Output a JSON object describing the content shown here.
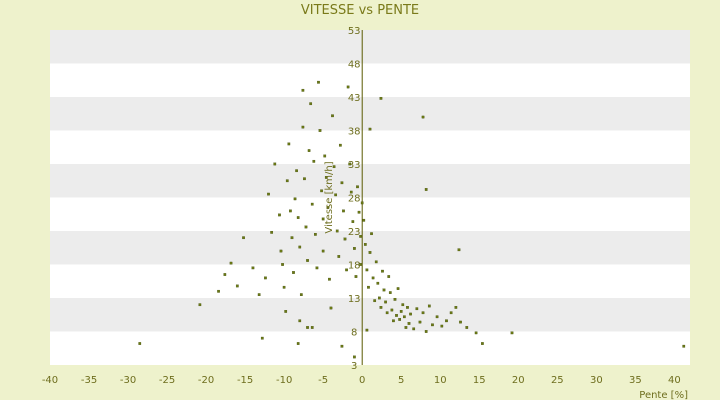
{
  "chart_data": {
    "type": "scatter",
    "title": "VITESSE vs PENTE",
    "xlabel": "Pente [%]",
    "ylabel": "Vitesse [km/h]",
    "xlim": [
      -40,
      42
    ],
    "ylim": [
      3,
      53
    ],
    "x_ticks": [
      -40,
      -35,
      -30,
      -25,
      -20,
      -15,
      -10,
      -5,
      0,
      5,
      10,
      15,
      20,
      25,
      30,
      35,
      40
    ],
    "y_ticks": [
      3,
      8,
      13,
      18,
      23,
      28,
      33,
      38,
      43,
      48,
      53
    ],
    "grid": "alternating horizontal bands",
    "colors": {
      "points": "#6b7a14",
      "background": "#eef2cc",
      "band": "#ececec",
      "text": "#6e6e1e"
    },
    "series": [
      {
        "points": [
          [
            -28.5,
            6.2
          ],
          [
            -20.8,
            12.0
          ],
          [
            -18.4,
            14.0
          ],
          [
            -17.6,
            16.5
          ],
          [
            -16.8,
            18.2
          ],
          [
            -16.0,
            14.8
          ],
          [
            -15.2,
            22.0
          ],
          [
            -14.0,
            17.5
          ],
          [
            -13.2,
            13.5
          ],
          [
            -12.8,
            7.0
          ],
          [
            -12.4,
            16.0
          ],
          [
            -12.0,
            28.5
          ],
          [
            -11.6,
            22.8
          ],
          [
            -11.2,
            33.0
          ],
          [
            -10.6,
            25.4
          ],
          [
            -10.4,
            20.0
          ],
          [
            -10.2,
            18.0
          ],
          [
            -10.0,
            14.6
          ],
          [
            -9.8,
            11.0
          ],
          [
            -9.6,
            30.5
          ],
          [
            -9.4,
            36.0
          ],
          [
            -9.2,
            26.0
          ],
          [
            -9.0,
            22.0
          ],
          [
            -8.8,
            16.8
          ],
          [
            -8.6,
            27.8
          ],
          [
            -8.4,
            32.0
          ],
          [
            -8.2,
            25.0
          ],
          [
            -8.0,
            20.6
          ],
          [
            -7.8,
            13.5
          ],
          [
            -7.6,
            44.0
          ],
          [
            -7.6,
            38.5
          ],
          [
            -7.4,
            30.8
          ],
          [
            -7.2,
            23.6
          ],
          [
            -7.0,
            18.6
          ],
          [
            -7.0,
            8.6
          ],
          [
            -6.8,
            35.0
          ],
          [
            -6.6,
            42.0
          ],
          [
            -6.4,
            27.0
          ],
          [
            -6.2,
            33.4
          ],
          [
            -6.0,
            22.5
          ],
          [
            -5.8,
            17.5
          ],
          [
            -5.6,
            45.2
          ],
          [
            -5.4,
            38.0
          ],
          [
            -5.2,
            29.0
          ],
          [
            -5.0,
            24.8
          ],
          [
            -5.0,
            20.0
          ],
          [
            -4.8,
            34.2
          ],
          [
            -4.6,
            31.0
          ],
          [
            -4.4,
            26.5
          ],
          [
            -4.2,
            15.8
          ],
          [
            -4.0,
            11.5
          ],
          [
            -3.8,
            40.2
          ],
          [
            -3.6,
            32.6
          ],
          [
            -3.4,
            28.4
          ],
          [
            -3.2,
            23.0
          ],
          [
            -3.0,
            19.2
          ],
          [
            -2.8,
            35.8
          ],
          [
            -2.6,
            30.2
          ],
          [
            -2.4,
            26.0
          ],
          [
            -2.2,
            21.8
          ],
          [
            -2.0,
            17.2
          ],
          [
            -1.8,
            44.5
          ],
          [
            -1.6,
            33.0
          ],
          [
            -1.4,
            28.8
          ],
          [
            -1.2,
            24.4
          ],
          [
            -1.0,
            20.4
          ],
          [
            -0.8,
            16.2
          ],
          [
            -0.6,
            29.6
          ],
          [
            -0.4,
            25.8
          ],
          [
            -0.2,
            22.2
          ],
          [
            -0.2,
            18.0
          ],
          [
            0.0,
            27.2
          ],
          [
            0.2,
            24.6
          ],
          [
            0.4,
            21.0
          ],
          [
            0.6,
            17.2
          ],
          [
            0.8,
            14.6
          ],
          [
            1.0,
            19.8
          ],
          [
            1.2,
            22.6
          ],
          [
            1.4,
            16.0
          ],
          [
            1.6,
            12.6
          ],
          [
            1.8,
            18.4
          ],
          [
            2.0,
            15.2
          ],
          [
            2.2,
            13.0
          ],
          [
            2.4,
            11.6
          ],
          [
            2.6,
            17.0
          ],
          [
            2.8,
            14.2
          ],
          [
            3.0,
            12.4
          ],
          [
            3.2,
            10.8
          ],
          [
            3.4,
            16.2
          ],
          [
            3.6,
            13.8
          ],
          [
            3.8,
            11.2
          ],
          [
            4.0,
            9.6
          ],
          [
            4.2,
            12.8
          ],
          [
            4.4,
            10.4
          ],
          [
            4.6,
            14.4
          ],
          [
            4.8,
            9.8
          ],
          [
            5.0,
            11.0
          ],
          [
            5.2,
            12.0
          ],
          [
            5.4,
            10.2
          ],
          [
            5.6,
            8.6
          ],
          [
            5.8,
            11.6
          ],
          [
            6.0,
            9.2
          ],
          [
            6.2,
            10.6
          ],
          [
            6.6,
            8.4
          ],
          [
            7.0,
            11.4
          ],
          [
            7.4,
            9.4
          ],
          [
            7.8,
            10.8
          ],
          [
            8.2,
            8.0
          ],
          [
            8.6,
            11.8
          ],
          [
            9.0,
            9.0
          ],
          [
            9.6,
            10.2
          ],
          [
            10.2,
            8.8
          ],
          [
            10.8,
            9.6
          ],
          [
            11.4,
            10.8
          ],
          [
            12.0,
            11.6
          ],
          [
            12.6,
            9.4
          ],
          [
            13.4,
            8.6
          ],
          [
            14.6,
            7.8
          ],
          [
            15.4,
            6.2
          ],
          [
            19.2,
            7.8
          ],
          [
            12.4,
            20.2
          ],
          [
            8.2,
            29.2
          ],
          [
            7.8,
            40.0
          ],
          [
            2.4,
            42.8
          ],
          [
            1.0,
            38.2
          ],
          [
            0.6,
            8.2
          ],
          [
            -1.0,
            4.2
          ],
          [
            -2.6,
            5.8
          ],
          [
            -6.4,
            8.6
          ],
          [
            -8.2,
            6.2
          ],
          [
            -8.0,
            9.6
          ],
          [
            41.2,
            5.8
          ],
          [
            43.0,
            5.6
          ]
        ]
      }
    ]
  }
}
